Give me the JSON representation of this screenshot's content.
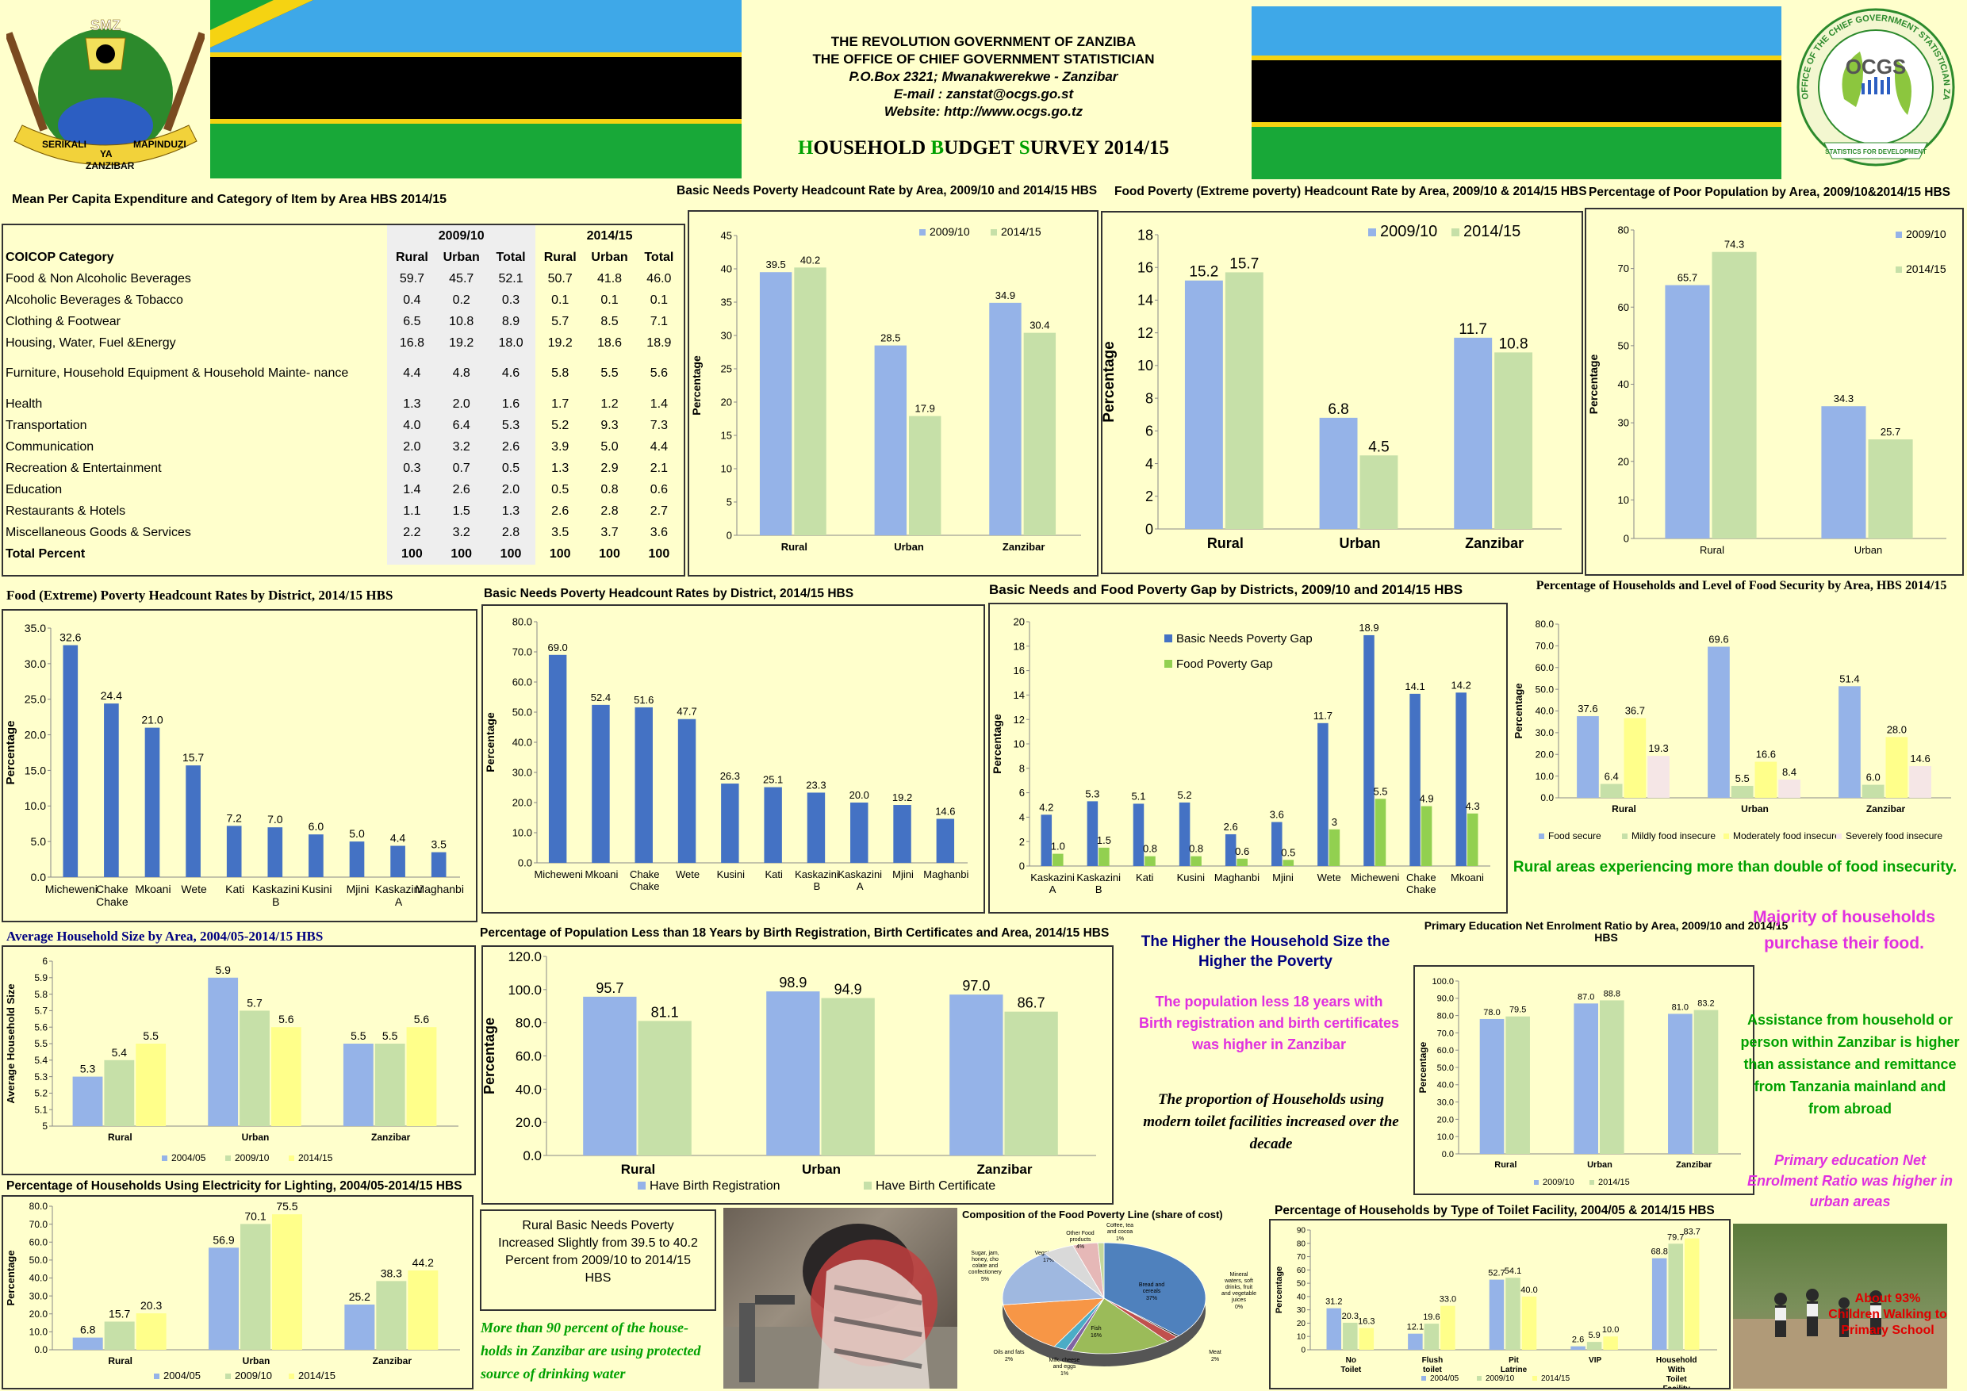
{
  "header": {
    "line1": "THE REVOLUTION GOVERNMENT OF ZANZIBA",
    "line2": "THE OFFICE OF CHIEF GOVERNMENT STATISTICIAN",
    "line3": "P.O.Box 2321; Mwanakwerekwe - Zanzibar",
    "line4": "E-mail : zanstat@ocgs.go.st",
    "line5": "Website: http://www.ocgs.go.tz",
    "survey_parts": [
      {
        "t": "H",
        "c": "#00a000"
      },
      {
        "t": "OUSEHOLD ",
        "c": "#000"
      },
      {
        "t": "B",
        "c": "#00a000"
      },
      {
        "t": "UDGET ",
        "c": "#000"
      },
      {
        "t": "S",
        "c": "#00a000"
      },
      {
        "t": "URVEY 2014/15",
        "c": "#000"
      }
    ]
  },
  "logos": {
    "left_top": "SMZ",
    "left_bottom_1": "SERIKALI",
    "left_bottom_2": "YA",
    "left_bottom_3": "MAPINDUZI",
    "left_bottom_4": "ZANZIBAR",
    "right_name": "OCGS",
    "right_ring": "OFFICE OF THE CHIEF GOVERNMENT STATISTICIAN ZANZIBAR",
    "right_ribbon": "STATISTICS FOR DEVELOPMENT"
  },
  "colors": {
    "blue": "#95b3e8",
    "green": "#c6e0a8",
    "yellow": "#ffff8a",
    "darkblue": "#4472c4",
    "lightgreen": "#92d050",
    "brightgreen": "#00a000",
    "magenta": "#e030e0",
    "navy": "#000080"
  },
  "table": {
    "title": "Mean Per Capita Expenditure and Category of Item by Area HBS 2014/15",
    "year1": "2009/10",
    "year2": "2014/15",
    "col_category": "COICOP Category",
    "cols": [
      "Rural",
      "Urban",
      "Total",
      "Rural",
      "Urban",
      "Total"
    ],
    "rows": [
      {
        "cat": "Food & Non Alcoholic Beverages",
        "v": [
          "59.7",
          "45.7",
          "52.1",
          "50.7",
          "41.8",
          "46.0"
        ]
      },
      {
        "cat": "Alcoholic Beverages & Tobacco",
        "v": [
          "0.4",
          "0.2",
          "0.3",
          "0.1",
          "0.1",
          "0.1"
        ]
      },
      {
        "cat": "Clothing & Footwear",
        "v": [
          "6.5",
          "10.8",
          "8.9",
          "5.7",
          "8.5",
          "7.1"
        ]
      },
      {
        "cat": "Housing, Water, Fuel &Energy",
        "v": [
          "16.8",
          "19.2",
          "18.0",
          "19.2",
          "18.6",
          "18.9"
        ]
      },
      {
        "cat": "Furniture, Household Equipment & Household Mainte- nance",
        "v": [
          "4.4",
          "4.8",
          "4.6",
          "5.8",
          "5.5",
          "5.6"
        ]
      },
      {
        "cat": "Health",
        "v": [
          "1.3",
          "2.0",
          "1.6",
          "1.7",
          "1.2",
          "1.4"
        ]
      },
      {
        "cat": "Transportation",
        "v": [
          "4.0",
          "6.4",
          "5.3",
          "5.2",
          "9.3",
          "7.3"
        ]
      },
      {
        "cat": "Communication",
        "v": [
          "2.0",
          "3.2",
          "2.6",
          "3.9",
          "5.0",
          "4.4"
        ]
      },
      {
        "cat": "Recreation & Entertainment",
        "v": [
          "0.3",
          "0.7",
          "0.5",
          "1.3",
          "2.9",
          "2.1"
        ]
      },
      {
        "cat": "Education",
        "v": [
          "1.4",
          "2.6",
          "2.0",
          "0.5",
          "0.8",
          "0.6"
        ]
      },
      {
        "cat": "Restaurants & Hotels",
        "v": [
          "1.1",
          "1.5",
          "1.3",
          "2.6",
          "2.8",
          "2.7"
        ]
      },
      {
        "cat": "Miscellaneous Goods & Services",
        "v": [
          "2.2",
          "3.2",
          "2.8",
          "3.5",
          "3.7",
          "3.6"
        ]
      },
      {
        "cat": "Total Percent",
        "v": [
          "100",
          "100",
          "100",
          "100",
          "100",
          "100"
        ],
        "bold": true
      }
    ]
  },
  "chart_data": [
    {
      "id": "c1",
      "type": "bar",
      "title": "Basic Needs Poverty Headcount Rate by Area, 2009/10 and 2014/15 HBS",
      "ylabel": "Percentage",
      "categories": [
        "Rural",
        "Urban",
        "Zanzibar"
      ],
      "series": [
        {
          "name": "2009/10",
          "values": [
            39.5,
            28.5,
            34.9
          ]
        },
        {
          "name": "2014/15",
          "values": [
            40.2,
            17.9,
            30.4
          ]
        }
      ],
      "ylim": [
        0,
        45
      ],
      "ticks": [
        0,
        5,
        10,
        15,
        20,
        25,
        30,
        35,
        40,
        45
      ],
      "labels": [
        "39.5",
        "40.2",
        "28.5",
        "17.9",
        "34.9",
        "30.4"
      ]
    },
    {
      "id": "c2",
      "type": "bar",
      "title": "Food Poverty (Extreme poverty) Headcount Rate by Area, 2009/10 & 2014/15 HBS",
      "ylabel": "Percentage",
      "categories": [
        "Rural",
        "Urban",
        "Zanzibar"
      ],
      "series": [
        {
          "name": "2009/10",
          "values": [
            15.2,
            6.8,
            11.7
          ]
        },
        {
          "name": "2014/15",
          "values": [
            15.7,
            4.5,
            10.8
          ]
        }
      ],
      "ylim": [
        0,
        18
      ],
      "ticks": [
        0,
        2,
        4,
        6,
        8,
        10,
        12,
        14,
        16,
        18
      ],
      "labels": [
        "15.2",
        "15.7",
        "6.8",
        "4.5",
        "11.7",
        "10.8"
      ]
    },
    {
      "id": "c3",
      "type": "bar",
      "title": "Percentage of Poor Population by Area, 2009/10&2014/15 HBS",
      "ylabel": "Percentage",
      "categories": [
        "Rural",
        "Urban"
      ],
      "series": [
        {
          "name": "2009/10",
          "values": [
            65.7,
            34.3
          ]
        },
        {
          "name": "2014/15",
          "values": [
            74.3,
            25.7
          ]
        }
      ],
      "ylim": [
        0,
        80
      ],
      "ticks": [
        0,
        10,
        20,
        30,
        40,
        50,
        60,
        70,
        80
      ],
      "labels": [
        "65.7",
        "74.3",
        "34.3",
        "25.7"
      ]
    },
    {
      "id": "c4",
      "type": "bar",
      "title": "Food (Extreme) Poverty Headcount Rates by District, 2014/15 HBS",
      "ylabel": "Percentage",
      "categories": [
        "Micheweni",
        "Chake Chake",
        "Mkoani",
        "Wete",
        "Kati",
        "Kaskazini B",
        "Kusini",
        "Mjini",
        "Kaskazini A",
        "Maghanbi"
      ],
      "series": [
        {
          "name": "",
          "values": [
            32.6,
            24.4,
            21.0,
            15.7,
            7.2,
            7.0,
            6.0,
            5.0,
            4.4,
            3.5
          ]
        }
      ],
      "ylim": [
        0,
        35
      ],
      "ticks": [
        "0.0",
        "5.0",
        "10.0",
        "15.0",
        "20.0",
        "25.0",
        "30.0",
        "35.0"
      ],
      "labels": [
        "32.6",
        "24.4",
        "21.0",
        "15.7",
        "7.2",
        "7.0",
        "6.0",
        "5.0",
        "4.4",
        "3.5"
      ]
    },
    {
      "id": "c5",
      "type": "bar",
      "title": "Basic Needs Poverty Headcount Rates by District, 2014/15 HBS",
      "ylabel": "Percentage",
      "categories": [
        "Micheweni",
        "Mkoani",
        "Chake Chake",
        "Wete",
        "Kusini",
        "Kati",
        "Kaskazini B",
        "Kaskazini A",
        "Mjini",
        "Maghanbi"
      ],
      "series": [
        {
          "name": "",
          "values": [
            69.0,
            52.4,
            51.6,
            47.7,
            26.3,
            25.1,
            23.3,
            20.0,
            19.2,
            14.6
          ]
        }
      ],
      "ylim": [
        0,
        80
      ],
      "ticks": [
        "0.0",
        "10.0",
        "20.0",
        "30.0",
        "40.0",
        "50.0",
        "60.0",
        "70.0",
        "80.0"
      ],
      "labels": [
        "69.0",
        "52.4",
        "51.6",
        "47.7",
        "26.3",
        "25.1",
        "23.3",
        "20.0",
        "19.2",
        "14.6"
      ]
    },
    {
      "id": "c6",
      "type": "bar",
      "title": "Basic Needs and Food Poverty Gap by Districts, 2009/10 and 2014/15 HBS",
      "ylabel": "Percentage",
      "categories": [
        "Kaskazini A",
        "Kaskazini B",
        "Kati",
        "Kusini",
        "Maghanbi",
        "Mjini",
        "Wete",
        "Micheweni",
        "Chake Chake",
        "Mkoani"
      ],
      "series": [
        {
          "name": "Basic Needs Poverty Gap",
          "values": [
            4.2,
            5.3,
            5.1,
            5.2,
            2.6,
            3.6,
            11.7,
            18.9,
            14.1,
            14.2
          ]
        },
        {
          "name": "Food Poverty Gap",
          "values": [
            1.0,
            1.5,
            0.8,
            0.8,
            0.6,
            0.5,
            3,
            5.5,
            4.9,
            4.3
          ]
        }
      ],
      "ylim": [
        0,
        20
      ],
      "ticks": [
        0,
        2,
        4,
        6,
        8,
        10,
        12,
        14,
        16,
        18,
        20
      ],
      "labels": [
        "4.2",
        "1.0",
        "5.3",
        "1.5",
        "5.1",
        "0.8",
        "5.2",
        "0.8",
        "2.6",
        "0.6",
        "3.6",
        "0.5",
        "11.7",
        "3",
        "18.9",
        "5.5",
        "14.1",
        "4.9",
        "14.2",
        "4.3"
      ]
    },
    {
      "id": "c7",
      "type": "bar",
      "title": "Percentage of Households and Level of Food Security by Area, HBS 2014/15",
      "ylabel": "Percentage",
      "categories": [
        "Rural",
        "Urban",
        "Zanzibar"
      ],
      "series": [
        {
          "name": "Food secure",
          "values": [
            37.6,
            69.6,
            51.4
          ]
        },
        {
          "name": "Mildly food insecure",
          "values": [
            6.4,
            5.5,
            6.0
          ]
        },
        {
          "name": "Moderately food insecure",
          "values": [
            36.7,
            16.6,
            28.0
          ]
        },
        {
          "name": "Severely food insecure",
          "values": [
            19.3,
            8.4,
            14.6
          ]
        }
      ],
      "ylim": [
        0,
        80
      ],
      "ticks": [
        "0.0",
        "10.0",
        "20.0",
        "30.0",
        "40.0",
        "50.0",
        "60.0",
        "70.0",
        "80.0"
      ],
      "labels": [
        "37.6",
        "6.4",
        "36.7",
        "19.3",
        "69.6",
        "5.5",
        "16.6",
        "8.4",
        "51.4",
        "6.0",
        "28.0",
        "14.6"
      ]
    },
    {
      "id": "c8",
      "type": "bar",
      "title": "Average Household Size by Area, 2004/05-2014/15 HBS",
      "ylabel": "Average Household Size",
      "categories": [
        "Rural",
        "Urban",
        "Zanzibar"
      ],
      "series": [
        {
          "name": "2004/05",
          "values": [
            5.3,
            5.9,
            5.5
          ]
        },
        {
          "name": "2009/10",
          "values": [
            5.4,
            5.7,
            5.5
          ]
        },
        {
          "name": "2014/15",
          "values": [
            5.5,
            5.6,
            5.6
          ]
        }
      ],
      "ylim": [
        5,
        6
      ],
      "ticks": [
        "5",
        "5.1",
        "5.2",
        "5.3",
        "5.4",
        "5.5",
        "5.6",
        "5.7",
        "5.8",
        "5.9",
        "6"
      ],
      "labels": [
        "5.3",
        "5.4",
        "5.5",
        "5.9",
        "5.7",
        "5.6",
        "5.5",
        "5.5",
        "5.6"
      ]
    },
    {
      "id": "c9",
      "type": "bar",
      "title": "Percentage of Population Less than 18 Years by Birth Registration, Birth Certificates and Area, 2014/15 HBS",
      "ylabel": "Percentage",
      "categories": [
        "Rural",
        "Urban",
        "Zanzibar"
      ],
      "series": [
        {
          "name": "Have Birth Registration",
          "values": [
            95.7,
            98.9,
            97.0
          ]
        },
        {
          "name": "Have Birth Certificate",
          "values": [
            81.1,
            94.9,
            86.7
          ]
        }
      ],
      "ylim": [
        0,
        120
      ],
      "ticks": [
        "0.0",
        "20.0",
        "40.0",
        "60.0",
        "80.0",
        "100.0",
        "120.0"
      ],
      "labels": [
        "95.7",
        "81.1",
        "98.9",
        "94.9",
        "97.0",
        "86.7"
      ]
    },
    {
      "id": "c10",
      "type": "bar",
      "title": "Primary Education Net Enrolment Ratio by Area, 2009/10 and 2014/15 HBS",
      "ylabel": "Percentage",
      "categories": [
        "Rural",
        "Urban",
        "Zanzibar"
      ],
      "series": [
        {
          "name": "2009/10",
          "values": [
            78.0,
            87.0,
            81.0
          ]
        },
        {
          "name": "2014/15",
          "values": [
            79.5,
            88.8,
            83.2
          ]
        }
      ],
      "ylim": [
        0,
        100
      ],
      "ticks": [
        "0.0",
        "10.0",
        "20.0",
        "30.0",
        "40.0",
        "50.0",
        "60.0",
        "70.0",
        "80.0",
        "90.0",
        "100.0"
      ],
      "labels": [
        "78.0",
        "79.5",
        "87.0",
        "88.8",
        "81.0",
        "83.2"
      ]
    },
    {
      "id": "c11",
      "type": "bar",
      "title": "Percentage of Households Using Electricity for Lighting, 2004/05-2014/15 HBS",
      "ylabel": "Percentage",
      "categories": [
        "Rural",
        "Urban",
        "Zanzibar"
      ],
      "series": [
        {
          "name": "2004/05",
          "values": [
            6.8,
            56.9,
            25.2
          ]
        },
        {
          "name": "2009/10",
          "values": [
            15.7,
            70.1,
            38.3
          ]
        },
        {
          "name": "2014/15",
          "values": [
            20.3,
            75.5,
            44.2
          ]
        }
      ],
      "ylim": [
        0,
        80
      ],
      "ticks": [
        "0.0",
        "10.0",
        "20.0",
        "30.0",
        "40.0",
        "50.0",
        "60.0",
        "70.0",
        "80.0"
      ],
      "labels": [
        "6.8",
        "15.7",
        "20.3",
        "56.9",
        "70.1",
        "75.5",
        "25.2",
        "38.3",
        "44.2"
      ]
    },
    {
      "id": "c12",
      "type": "pie",
      "title": "Composition of the Food Poverty  Line (share of cost)",
      "slices": [
        {
          "label": "Bread and cereals",
          "value": 37
        },
        {
          "label": "Mineral waters, soft drinks, fruit and vegetable juices",
          "value": 0
        },
        {
          "label": "Meat",
          "value": 2
        },
        {
          "label": "Fish",
          "value": 16
        },
        {
          "label": "Milk, cheese and eggs",
          "value": 1
        },
        {
          "label": "Oils and fats",
          "value": 2
        },
        {
          "label": "Fruit",
          "value": 15
        },
        {
          "label": "Vegetables",
          "value": 17
        },
        {
          "label": "Sugar, jam, honey, cho colate and confectionery",
          "value": 5
        },
        {
          "label": "Other Food products",
          "value": 4
        },
        {
          "label": "Coffee, tea and cocoa",
          "value": 1
        }
      ],
      "pct_labels": [
        "37%",
        "0%",
        "2%",
        "16%",
        "1%",
        "2%",
        "15%",
        "17%",
        "5%",
        "4%",
        "1%"
      ]
    },
    {
      "id": "c13",
      "type": "bar",
      "title": "Percentage of Households by Type of Toilet Facility, 2004/05 & 2014/15 HBS",
      "ylabel": "Percentage",
      "categories": [
        "No Toilet",
        "Flush toilet",
        "Pit Latrine",
        "VIP",
        "Household With Toilet Facility"
      ],
      "series": [
        {
          "name": "2004/05",
          "values": [
            31.2,
            12.1,
            52.7,
            2.6,
            68.8
          ]
        },
        {
          "name": "2009/10",
          "values": [
            20.3,
            19.6,
            54.1,
            5.9,
            79.7
          ]
        },
        {
          "name": "2014/15",
          "values": [
            16.3,
            33.0,
            40.0,
            10.0,
            83.7
          ]
        }
      ],
      "ylim": [
        0,
        90
      ],
      "ticks": [
        "0",
        "10",
        "20",
        "30",
        "40",
        "50",
        "60",
        "70",
        "80",
        "90"
      ],
      "labels": [
        "31.2",
        "20.3",
        "16.3",
        "12.1",
        "19.6",
        "33.0",
        "52.7",
        "54.1",
        "40.0",
        "2.6",
        "5.9",
        "10.0",
        "68.8",
        "79.7",
        "83.7"
      ]
    }
  ],
  "notes": {
    "rural_insecurity": "Rural areas experiencing more than double of food insecurity.",
    "purchase": "Majority of households purchase their food.",
    "household_size": "The Higher the Household Size the Higher the Poverty",
    "birth": "The population less 18 years with Birth registration and birth certificates was higher in Zanzibar",
    "toilet": "The proportion of Households using modern toilet facilities increased over the decade",
    "assistance": "Assistance from household or person within Zanzibar is higher than assistance and remittance from Tanzania mainland and from abroad",
    "enrolment": "Primary education Net Enrolment Ratio was higher in urban areas",
    "rural_poverty": "Rural Basic Needs Poverty Increased Slightly from  39.5 to 40.2 Percent from 2009/10 to 2014/15 HBS",
    "water": "More than 90 percent of the house- holds in Zanzibar are using protected source of drinking water",
    "children": "About 93% Children Walking to Primary School"
  }
}
